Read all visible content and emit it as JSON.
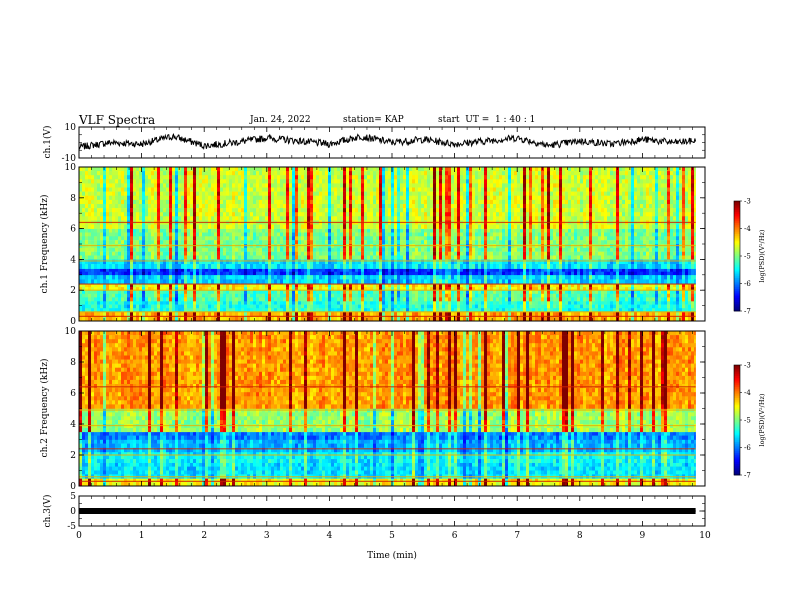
{
  "header": {
    "title": "VLF Spectra",
    "date": "Jan. 24, 2022",
    "station": "station= KAP",
    "start_ut": "start  UT =  1 : 40 : 1"
  },
  "chart_data": [
    {
      "type": "line",
      "panel": "ch1-waveform",
      "ylabel": "ch.1(V)",
      "ylim": [
        -10,
        10
      ],
      "yticks": [
        -10,
        10
      ],
      "x": [
        0.0,
        0.5,
        1.0,
        1.5,
        2.0,
        2.5,
        3.0,
        3.5,
        4.0,
        4.5,
        5.0,
        5.5,
        6.0,
        6.5,
        7.0,
        7.5,
        8.0,
        8.5,
        9.0,
        9.5,
        9.85
      ],
      "y": [
        -3,
        0,
        -1,
        4,
        -2,
        0,
        3,
        1,
        -1,
        4,
        0,
        2,
        -1,
        1,
        3,
        -2,
        1,
        -1,
        2,
        0,
        1
      ]
    },
    {
      "type": "heatmap",
      "panel": "ch1-spectrogram",
      "ylabel": "ch.1 Frequency (kHz)",
      "ylim": [
        0,
        10
      ],
      "yticks": [
        0,
        2,
        4,
        6,
        8,
        10
      ],
      "colorbar": {
        "label": "log(PSD)(V²/Hz)",
        "range": [
          -7,
          -3
        ],
        "ticks": [
          -3,
          -4,
          -5,
          -6,
          -7
        ]
      },
      "bands": [
        {
          "f_khz": [
            0,
            0.6
          ],
          "level": -4.2
        },
        {
          "f_khz": [
            0.6,
            1.3
          ],
          "level": -5.4
        },
        {
          "f_khz": [
            1.3,
            2.0
          ],
          "level": -5.2
        },
        {
          "f_khz": [
            2.0,
            2.4
          ],
          "level": -4.5
        },
        {
          "f_khz": [
            2.4,
            3.0
          ],
          "level": -5.7
        },
        {
          "f_khz": [
            3.0,
            3.4
          ],
          "level": -6.3
        },
        {
          "f_khz": [
            3.4,
            4.0
          ],
          "level": -5.6
        },
        {
          "f_khz": [
            4.0,
            6.0
          ],
          "level": -5.0
        },
        {
          "f_khz": [
            6.0,
            10.0
          ],
          "level": -4.7
        }
      ]
    },
    {
      "type": "heatmap",
      "panel": "ch2-spectrogram",
      "ylabel": "ch.2 Frequency (kHz)",
      "ylim": [
        0,
        10
      ],
      "yticks": [
        0,
        2,
        4,
        6,
        8,
        10
      ],
      "colorbar": {
        "label": "log(PSD)(V²/Hz)",
        "range": [
          -7,
          -3
        ],
        "ticks": [
          -3,
          -4,
          -5,
          -6,
          -7
        ]
      },
      "bands": [
        {
          "f_khz": [
            0,
            0.5
          ],
          "level": -4.5
        },
        {
          "f_khz": [
            0.5,
            1.5
          ],
          "level": -5.6
        },
        {
          "f_khz": [
            1.5,
            2.2
          ],
          "level": -5.5
        },
        {
          "f_khz": [
            2.2,
            3.0
          ],
          "level": -5.8
        },
        {
          "f_khz": [
            3.0,
            3.5
          ],
          "level": -6.0
        },
        {
          "f_khz": [
            3.5,
            5.0
          ],
          "level": -4.9
        },
        {
          "f_khz": [
            5.0,
            10.0
          ],
          "level": -4.1
        }
      ]
    },
    {
      "type": "line",
      "panel": "ch3-waveform",
      "ylabel": "ch.3(V)",
      "ylim": [
        -5,
        5
      ],
      "yticks": [
        -5,
        0,
        5
      ],
      "x": [
        0.0,
        9.85
      ],
      "y": [
        0,
        0
      ]
    }
  ],
  "x_axis": {
    "label": "Time (min)",
    "range": [
      0,
      10
    ],
    "ticks": [
      "0",
      "1",
      "2",
      "3",
      "4",
      "5",
      "6",
      "7",
      "8",
      "9",
      "10"
    ]
  }
}
